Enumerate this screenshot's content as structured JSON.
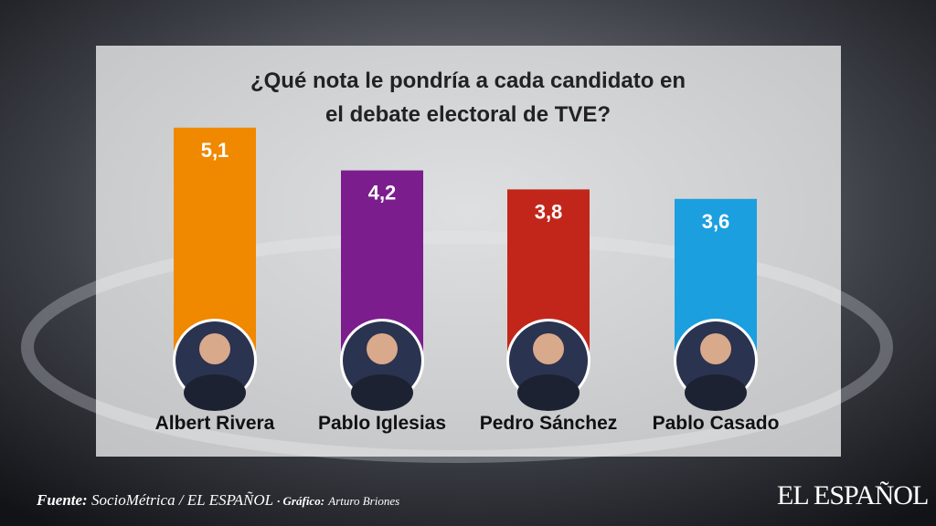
{
  "chart_data": {
    "type": "bar",
    "title": "¿Qué nota le pondría a cada candidato en el debate electoral de TVE?",
    "categories": [
      "Albert Rivera",
      "Pablo Iglesias",
      "Pedro Sánchez",
      "Pablo Casado"
    ],
    "series": [
      {
        "name": null,
        "values": [
          5.1,
          4.2,
          3.8,
          3.6
        ],
        "value_labels": [
          "5,1",
          "4,2",
          "3,8",
          "3,6"
        ],
        "colors": [
          "#f08800",
          "#7c1d8e",
          "#c2261b",
          "#1b9fdf"
        ]
      }
    ]
  },
  "footer": {
    "source_label": "Fuente:",
    "source": "SocioMétrica / EL ESPAÑOL",
    "credit_label": "· Gráfico:",
    "credit": "Arturo Briones",
    "logo": "EL ESPAÑOL"
  }
}
